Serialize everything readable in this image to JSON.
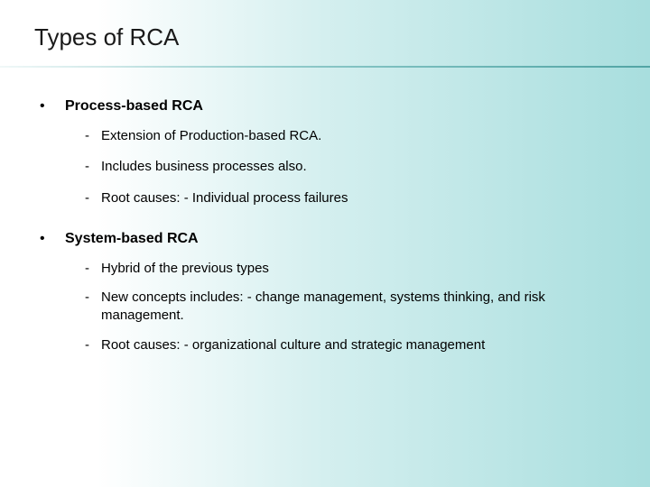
{
  "title": "Types of RCA",
  "sections": [
    {
      "heading": "Process-based RCA",
      "items": [
        "Extension of Production-based RCA.",
        "Includes business processes also.",
        "Root causes: - Individual process failures"
      ]
    },
    {
      "heading": "System-based RCA",
      "items": [
        "Hybrid of the previous types",
        "New concepts includes: - change management, systems thinking, and risk management.",
        "Root causes: - organizational culture and strategic management"
      ]
    }
  ],
  "colors": {
    "background_left": "#ffffff",
    "background_right": "#a8dede",
    "text": "#000000",
    "title": "#1a1a1a"
  },
  "typography": {
    "title_fontsize": 26,
    "heading_fontsize": 16,
    "body_fontsize": 15,
    "font_family": "Arial"
  }
}
